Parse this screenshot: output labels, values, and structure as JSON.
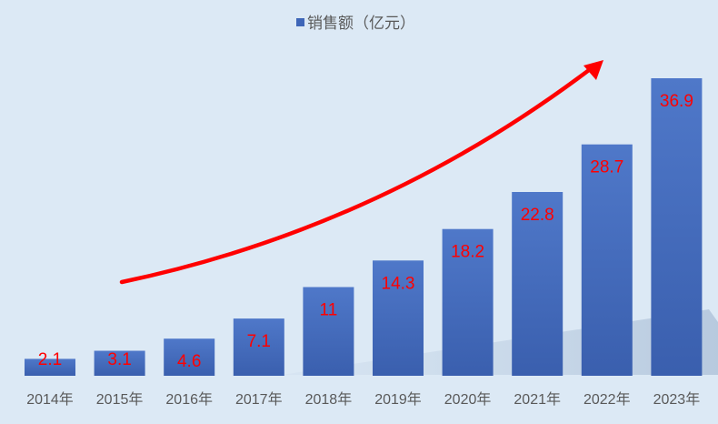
{
  "chart_data": {
    "type": "bar",
    "categories": [
      "2014年",
      "2015年",
      "2016年",
      "2017年",
      "2018年",
      "2019年",
      "2020年",
      "2021年",
      "2022年",
      "2023年"
    ],
    "series": [
      {
        "name": "销售额（亿元）",
        "values": [
          2.1,
          3.1,
          4.6,
          7.1,
          11,
          14.3,
          18.2,
          22.8,
          28.7,
          36.9
        ]
      }
    ],
    "value_labels": [
      "2.1",
      "3.1",
      "4.6",
      "7.1",
      "11",
      "14.3",
      "18.2",
      "22.8",
      "28.7",
      "36.9"
    ],
    "ylim": [
      0,
      37
    ],
    "grid": false,
    "legend_position": "top-center",
    "annotation": "red upward trend arrow",
    "colors": {
      "bar": "#3e66b8",
      "bar_light": "#4f78c9",
      "label": "#ff0000",
      "arrow": "#ff0000",
      "background": "#dce9f5"
    }
  }
}
